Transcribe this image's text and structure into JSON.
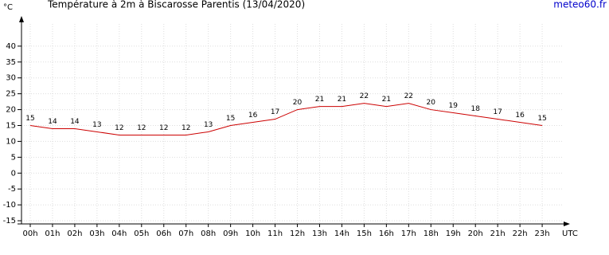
{
  "chart_data": {
    "type": "line",
    "title": "Température à 2m à Biscarosse Parentis (13/04/2020)",
    "source": "meteo60.fr",
    "y_label": "°C",
    "x_label": "UTC",
    "categories": [
      "00h",
      "01h",
      "02h",
      "03h",
      "04h",
      "05h",
      "06h",
      "07h",
      "08h",
      "09h",
      "10h",
      "11h",
      "12h",
      "13h",
      "14h",
      "15h",
      "16h",
      "17h",
      "18h",
      "19h",
      "20h",
      "21h",
      "22h",
      "23h"
    ],
    "series": [
      {
        "name": "Température",
        "color": "#cc0000",
        "values": [
          15,
          14,
          14,
          13,
          12,
          12,
          12,
          12,
          13,
          15,
          16,
          17,
          20,
          21,
          21,
          22,
          21,
          22,
          20,
          19,
          18,
          17,
          16,
          15
        ]
      }
    ],
    "ylim": [
      -16,
      47
    ],
    "yticks": [
      -15,
      -10,
      -5,
      0,
      5,
      10,
      15,
      20,
      25,
      30,
      35,
      40
    ],
    "grid": true
  }
}
